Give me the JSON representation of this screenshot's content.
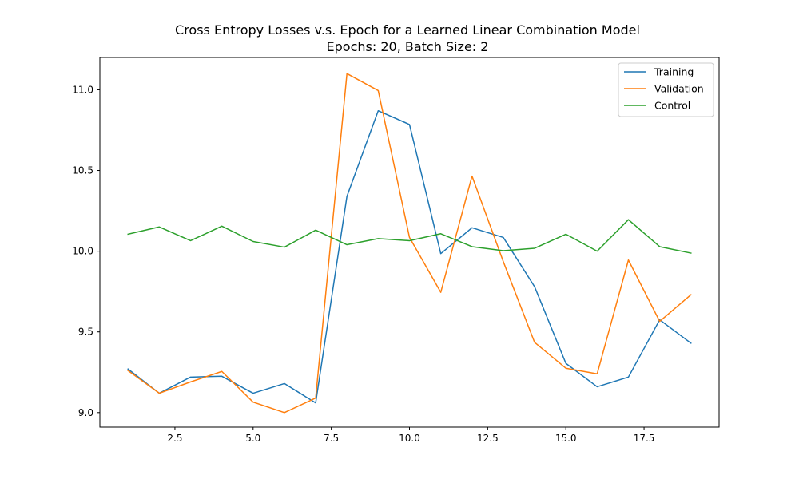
{
  "chart_data": {
    "type": "line",
    "title": "Cross Entropy Losses v.s. Epoch for a Learned Linear Combination Model",
    "subtitle": "Epochs: 20, Batch Size: 2",
    "xlabel": "",
    "ylabel": "",
    "xlim": [
      0.1,
      19.9
    ],
    "ylim": [
      8.91,
      11.2
    ],
    "xticks": [
      2.5,
      5.0,
      7.5,
      10.0,
      12.5,
      15.0,
      17.5
    ],
    "xtick_labels": [
      "2.5",
      "5.0",
      "7.5",
      "10.0",
      "12.5",
      "15.0",
      "17.5"
    ],
    "yticks": [
      9.0,
      9.5,
      10.0,
      10.5,
      11.0
    ],
    "ytick_labels": [
      "9.0",
      "9.5",
      "10.0",
      "10.5",
      "11.0"
    ],
    "grid": false,
    "legend_position": "top-right",
    "x": [
      1,
      2,
      3,
      4,
      5,
      6,
      7,
      8,
      9,
      10,
      11,
      12,
      13,
      14,
      15,
      16,
      17,
      18,
      19
    ],
    "series": [
      {
        "name": "Training",
        "color": "#1f77b4",
        "values": [
          9.27,
          9.12,
          9.22,
          9.225,
          9.12,
          9.18,
          9.06,
          10.34,
          10.87,
          10.785,
          9.985,
          10.145,
          10.085,
          9.78,
          9.305,
          9.16,
          9.22,
          9.575,
          9.43
        ]
      },
      {
        "name": "Validation",
        "color": "#ff7f0e",
        "values": [
          9.26,
          9.12,
          9.19,
          9.255,
          9.065,
          9.0,
          9.09,
          11.1,
          10.995,
          10.085,
          9.745,
          10.465,
          9.935,
          9.435,
          9.275,
          9.24,
          9.945,
          9.565,
          9.73
        ]
      },
      {
        "name": "Control",
        "color": "#2ca02c",
        "values": [
          10.105,
          10.15,
          10.065,
          10.155,
          10.06,
          10.025,
          10.13,
          10.04,
          10.078,
          10.065,
          10.108,
          10.028,
          10.003,
          10.018,
          10.105,
          10.0,
          10.195,
          10.028,
          9.988
        ]
      }
    ]
  }
}
